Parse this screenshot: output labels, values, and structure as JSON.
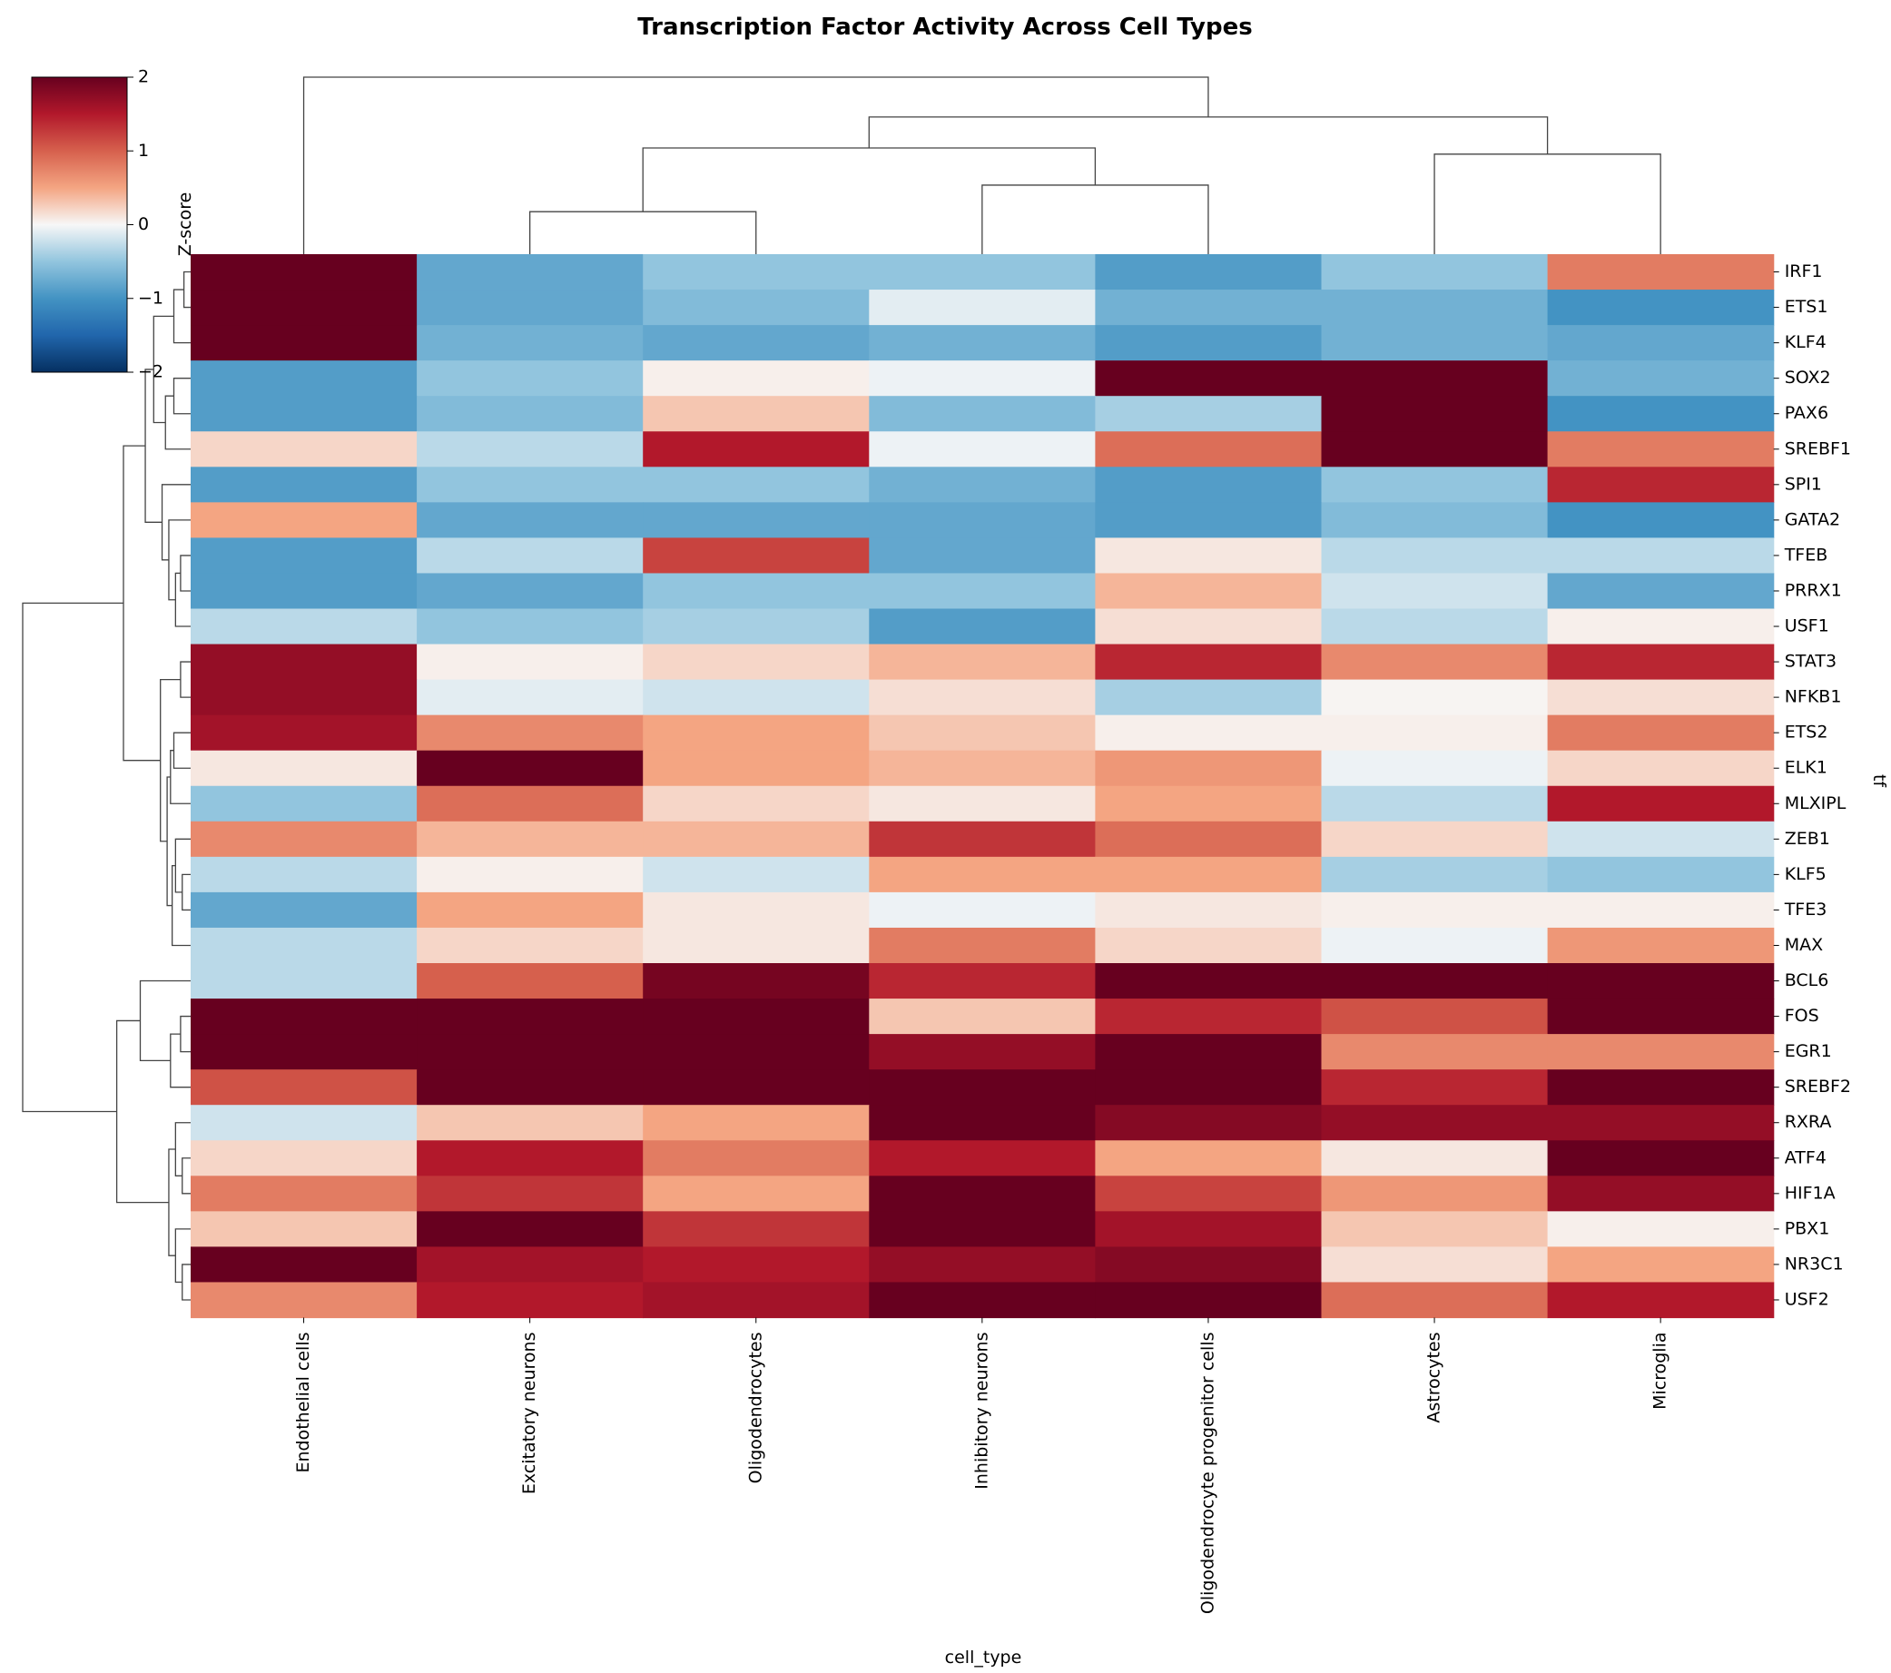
{
  "chart_data": {
    "type": "heatmap",
    "title": "Transcription Factor Activity Across Cell Types",
    "xlabel": "cell_type",
    "ylabel": "tf",
    "colorbar": {
      "label": "Z-score",
      "ticks": [
        "2",
        "1",
        "0",
        "−1",
        "−2"
      ],
      "vmin": -2,
      "vmax": 2,
      "colormap": "RdBu_r"
    },
    "columns": [
      "Endothelial cells",
      "Excitatory neurons",
      "Oligodendrocytes",
      "Inhibitory neurons",
      "Oligodendrocyte progenitor cells",
      "Astrocytes",
      "Microglia"
    ],
    "rows": [
      "IRF1",
      "ETS1",
      "KLF4",
      "SOX2",
      "PAX6",
      "SREBF1",
      "SPI1",
      "GATA2",
      "TFEB",
      "PRRX1",
      "USF1",
      "STAT3",
      "NFKB1",
      "ETS2",
      "ELK1",
      "MLXIPL",
      "ZEB1",
      "KLF5",
      "TFE3",
      "MAX",
      "BCL6",
      "FOS",
      "EGR1",
      "SREBF2",
      "RXRA",
      "ATF4",
      "HIF1A",
      "PBX1",
      "NR3C1",
      "USF2"
    ],
    "values": [
      [
        2.0,
        -0.8,
        -0.5,
        -0.5,
        -0.9,
        -0.5,
        0.8
      ],
      [
        2.0,
        -0.8,
        -0.6,
        -0.1,
        -0.7,
        -0.7,
        -1.0
      ],
      [
        2.0,
        -0.7,
        -0.8,
        -0.7,
        -0.9,
        -0.7,
        -0.8
      ],
      [
        -0.9,
        -0.5,
        0.05,
        -0.05,
        2.0,
        2.0,
        -0.7
      ],
      [
        -0.9,
        -0.6,
        0.3,
        -0.6,
        -0.4,
        2.0,
        -1.0
      ],
      [
        0.2,
        -0.3,
        1.5,
        -0.05,
        0.9,
        2.0,
        0.8
      ],
      [
        -0.9,
        -0.5,
        -0.5,
        -0.7,
        -0.9,
        -0.5,
        1.4
      ],
      [
        0.5,
        -0.8,
        -0.8,
        -0.8,
        -0.9,
        -0.6,
        -1.0
      ],
      [
        -0.9,
        -0.3,
        1.2,
        -0.8,
        0.1,
        -0.3,
        -0.3
      ],
      [
        -0.9,
        -0.8,
        -0.5,
        -0.5,
        0.4,
        -0.2,
        -0.8
      ],
      [
        -0.3,
        -0.5,
        -0.4,
        -0.9,
        0.15,
        -0.3,
        0.05
      ],
      [
        1.7,
        0.05,
        0.2,
        0.4,
        1.4,
        0.7,
        1.4
      ],
      [
        1.7,
        -0.1,
        -0.2,
        0.15,
        -0.4,
        0.02,
        0.15
      ],
      [
        1.6,
        0.7,
        0.5,
        0.3,
        0.05,
        0.05,
        0.8
      ],
      [
        0.1,
        2.0,
        0.5,
        0.4,
        0.6,
        -0.05,
        0.2
      ],
      [
        -0.5,
        0.9,
        0.2,
        0.1,
        0.5,
        -0.3,
        1.5
      ],
      [
        0.7,
        0.4,
        0.4,
        1.3,
        0.9,
        0.2,
        -0.2
      ],
      [
        -0.3,
        0.05,
        -0.2,
        0.5,
        0.5,
        -0.4,
        -0.5
      ],
      [
        -0.8,
        0.5,
        0.1,
        -0.05,
        0.1,
        0.05,
        0.05
      ],
      [
        -0.3,
        0.2,
        0.1,
        0.8,
        0.2,
        -0.05,
        0.6
      ],
      [
        -0.3,
        1.0,
        1.9,
        1.4,
        2.0,
        2.0,
        2.0
      ],
      [
        2.0,
        2.0,
        2.0,
        0.3,
        1.4,
        1.1,
        2.0
      ],
      [
        2.0,
        2.0,
        2.0,
        1.7,
        2.0,
        0.7,
        0.7
      ],
      [
        1.1,
        2.0,
        2.0,
        2.0,
        2.0,
        1.4,
        2.0
      ],
      [
        -0.2,
        0.3,
        0.5,
        2.0,
        1.8,
        1.7,
        1.7
      ],
      [
        0.2,
        1.5,
        0.8,
        1.5,
        0.5,
        0.1,
        2.0
      ],
      [
        0.8,
        1.3,
        0.5,
        2.0,
        1.2,
        0.6,
        1.7
      ],
      [
        0.3,
        2.0,
        1.3,
        2.0,
        1.6,
        0.3,
        0.05
      ],
      [
        2.0,
        1.6,
        1.5,
        1.7,
        1.8,
        0.15,
        0.5
      ],
      [
        0.7,
        1.5,
        1.6,
        2.0,
        2.0,
        0.9,
        1.5
      ]
    ]
  }
}
